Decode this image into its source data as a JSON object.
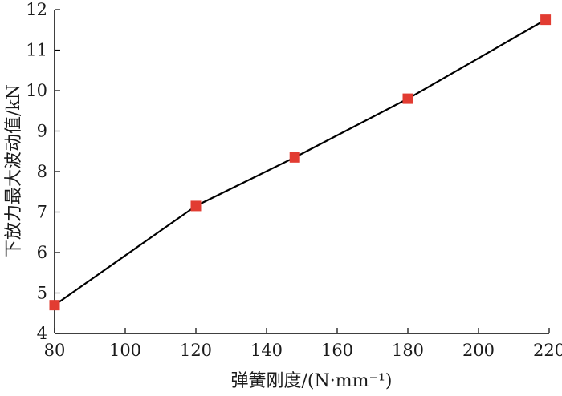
{
  "chart_data": {
    "type": "line",
    "title": "",
    "xlabel": "弹簧刚度/(N·mm⁻¹)",
    "ylabel": "下放力最大波动值/kN",
    "xlim": [
      80,
      220
    ],
    "ylim": [
      4,
      12
    ],
    "xticks": [
      80,
      100,
      120,
      140,
      160,
      180,
      200,
      220
    ],
    "yticks": [
      4,
      5,
      6,
      7,
      8,
      9,
      10,
      11,
      12
    ],
    "grid": false,
    "legend": "none",
    "series": [
      {
        "x": [
          80,
          120,
          148,
          180,
          219
        ],
        "y": [
          4.7,
          7.15,
          8.35,
          9.8,
          11.75
        ],
        "line_color": "#000000",
        "marker": "square",
        "marker_color": "#e23c32"
      }
    ]
  }
}
